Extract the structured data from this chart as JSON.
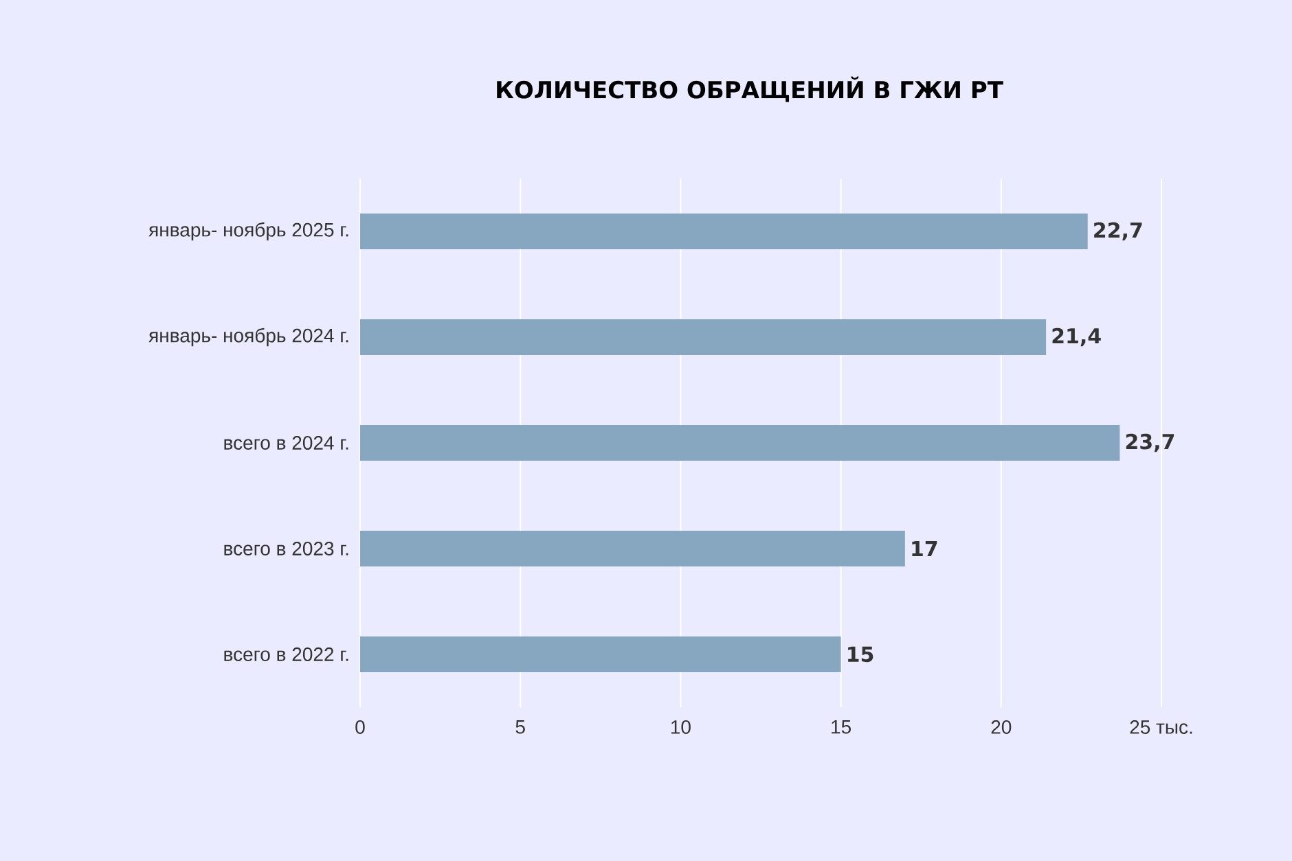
{
  "chart_data": {
    "type": "bar",
    "orientation": "horizontal",
    "title": "КОЛИЧЕСТВО ОБРАЩЕНИЙ В ГЖИ РТ",
    "categories": [
      "январь- ноябрь 2025 г.",
      "январь- ноябрь 2024 г.",
      "всего в 2024 г.",
      "всего в 2023 г.",
      "всего в 2022 г."
    ],
    "values": [
      22.7,
      21.4,
      23.7,
      17,
      15
    ],
    "value_labels": [
      "22,7",
      "21,4",
      "23,7",
      "17",
      "15"
    ],
    "color": "#87a7c0",
    "xlim": [
      0,
      25
    ],
    "xticks": [
      0,
      5,
      10,
      15,
      20,
      {
        "value": 25,
        "label": "25 тыс."
      }
    ],
    "grid": "x"
  }
}
